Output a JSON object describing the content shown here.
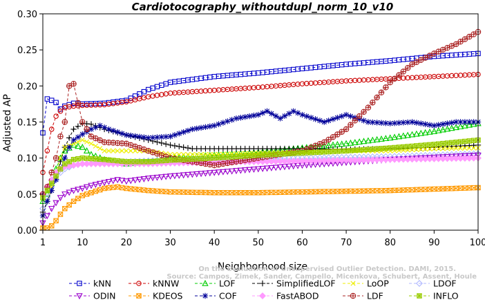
{
  "chart_data": {
    "type": "line",
    "title": "Cardiotocography_withoutdupl_norm_10_v10",
    "xlabel": "Neighborhood size",
    "ylabel": "Adjusted AP",
    "xlim": [
      1,
      100
    ],
    "ylim": [
      0,
      0.3
    ],
    "x_ticks": [
      1,
      10,
      20,
      30,
      40,
      50,
      60,
      70,
      80,
      90,
      100
    ],
    "y_ticks": [
      "0.00",
      "0.05",
      "0.10",
      "0.15",
      "0.20",
      "0.25",
      "0.30"
    ],
    "grid": false,
    "legend_position": "bottom",
    "watermark": [
      "Source: Campos, Zimek, Sander, Campello, Micenkova, Schubert, Assent, Houle",
      "On the Evaluation of Unsupervised Outlier Detection. DAMI, 2015."
    ],
    "series": [
      {
        "name": "kNN",
        "color": "#0000cc",
        "marker": "square",
        "dash": "4,3",
        "points": [
          [
            1,
            0.135
          ],
          [
            2,
            0.182
          ],
          [
            3,
            0.18
          ],
          [
            4,
            0.177
          ],
          [
            5,
            0.168
          ],
          [
            6,
            0.172
          ],
          [
            8,
            0.176
          ],
          [
            10,
            0.175
          ],
          [
            15,
            0.176
          ],
          [
            20,
            0.18
          ],
          [
            25,
            0.195
          ],
          [
            30,
            0.205
          ],
          [
            40,
            0.213
          ],
          [
            50,
            0.218
          ],
          [
            60,
            0.224
          ],
          [
            70,
            0.23
          ],
          [
            80,
            0.235
          ],
          [
            90,
            0.241
          ],
          [
            100,
            0.245
          ]
        ]
      },
      {
        "name": "kNNW",
        "color": "#cc0000",
        "marker": "circle",
        "dash": "4,3",
        "points": [
          [
            1,
            0.08
          ],
          [
            2,
            0.11
          ],
          [
            3,
            0.14
          ],
          [
            4,
            0.158
          ],
          [
            5,
            0.165
          ],
          [
            6,
            0.17
          ],
          [
            8,
            0.172
          ],
          [
            10,
            0.173
          ],
          [
            15,
            0.174
          ],
          [
            20,
            0.178
          ],
          [
            25,
            0.185
          ],
          [
            30,
            0.19
          ],
          [
            40,
            0.194
          ],
          [
            50,
            0.198
          ],
          [
            60,
            0.203
          ],
          [
            70,
            0.207
          ],
          [
            80,
            0.21
          ],
          [
            90,
            0.213
          ],
          [
            100,
            0.216
          ]
        ]
      },
      {
        "name": "LOF",
        "color": "#00cc00",
        "marker": "triangle-up",
        "dash": "4,3",
        "points": [
          [
            1,
            0.04
          ],
          [
            2,
            0.05
          ],
          [
            3,
            0.065
          ],
          [
            4,
            0.085
          ],
          [
            5,
            0.1
          ],
          [
            6,
            0.11
          ],
          [
            8,
            0.118
          ],
          [
            10,
            0.115
          ],
          [
            12,
            0.105
          ],
          [
            15,
            0.098
          ],
          [
            20,
            0.092
          ],
          [
            25,
            0.095
          ],
          [
            30,
            0.1
          ],
          [
            40,
            0.104
          ],
          [
            50,
            0.108
          ],
          [
            60,
            0.114
          ],
          [
            70,
            0.12
          ],
          [
            80,
            0.128
          ],
          [
            90,
            0.137
          ],
          [
            100,
            0.148
          ]
        ]
      },
      {
        "name": "SimplifiedLOF",
        "color": "#000000",
        "marker": "plus",
        "dash": "4,3",
        "points": [
          [
            1,
            0.025
          ],
          [
            2,
            0.04
          ],
          [
            3,
            0.055
          ],
          [
            4,
            0.075
          ],
          [
            5,
            0.095
          ],
          [
            6,
            0.115
          ],
          [
            7,
            0.128
          ],
          [
            8,
            0.14
          ],
          [
            10,
            0.148
          ],
          [
            12,
            0.147
          ],
          [
            15,
            0.14
          ],
          [
            20,
            0.132
          ],
          [
            25,
            0.125
          ],
          [
            30,
            0.118
          ],
          [
            35,
            0.113
          ],
          [
            40,
            0.113
          ],
          [
            50,
            0.113
          ],
          [
            60,
            0.113
          ],
          [
            70,
            0.112
          ],
          [
            80,
            0.113
          ],
          [
            90,
            0.115
          ],
          [
            100,
            0.118
          ]
        ]
      },
      {
        "name": "LoOP",
        "color": "#eeee00",
        "marker": "x",
        "dash": "4,3",
        "points": [
          [
            1,
            0.02
          ],
          [
            2,
            0.04
          ],
          [
            3,
            0.06
          ],
          [
            4,
            0.08
          ],
          [
            5,
            0.1
          ],
          [
            6,
            0.115
          ],
          [
            8,
            0.12
          ],
          [
            10,
            0.125
          ],
          [
            12,
            0.12
          ],
          [
            15,
            0.11
          ],
          [
            20,
            0.11
          ],
          [
            25,
            0.11
          ],
          [
            30,
            0.105
          ],
          [
            40,
            0.105
          ],
          [
            50,
            0.107
          ],
          [
            60,
            0.108
          ],
          [
            70,
            0.11
          ],
          [
            80,
            0.11
          ],
          [
            90,
            0.113
          ],
          [
            100,
            0.114
          ]
        ]
      },
      {
        "name": "LDOF",
        "color": "#b0b8ff",
        "marker": "diamond",
        "dash": "4,3",
        "points": [
          [
            1,
            0.03
          ],
          [
            2,
            0.045
          ],
          [
            3,
            0.06
          ],
          [
            4,
            0.07
          ],
          [
            5,
            0.08
          ],
          [
            6,
            0.085
          ],
          [
            8,
            0.09
          ],
          [
            10,
            0.092
          ],
          [
            15,
            0.093
          ],
          [
            20,
            0.095
          ],
          [
            25,
            0.096
          ],
          [
            30,
            0.097
          ],
          [
            40,
            0.098
          ],
          [
            50,
            0.099
          ],
          [
            60,
            0.1
          ],
          [
            70,
            0.101
          ],
          [
            80,
            0.102
          ],
          [
            90,
            0.104
          ],
          [
            100,
            0.106
          ]
        ]
      },
      {
        "name": "ODIN",
        "color": "#9900cc",
        "marker": "triangle-down",
        "dash": "4,3",
        "points": [
          [
            1,
            0.01
          ],
          [
            2,
            0.02
          ],
          [
            3,
            0.03
          ],
          [
            4,
            0.038
          ],
          [
            5,
            0.045
          ],
          [
            6,
            0.05
          ],
          [
            8,
            0.055
          ],
          [
            10,
            0.058
          ],
          [
            12,
            0.062
          ],
          [
            15,
            0.066
          ],
          [
            18,
            0.07
          ],
          [
            20,
            0.068
          ],
          [
            25,
            0.072
          ],
          [
            30,
            0.075
          ],
          [
            40,
            0.08
          ],
          [
            50,
            0.085
          ],
          [
            60,
            0.09
          ],
          [
            70,
            0.094
          ],
          [
            80,
            0.098
          ],
          [
            90,
            0.101
          ],
          [
            100,
            0.104
          ]
        ]
      },
      {
        "name": "KDEOS",
        "color": "#ff9900",
        "marker": "square-x",
        "dash": "4,3",
        "points": [
          [
            1,
            0.003
          ],
          [
            2,
            0.003
          ],
          [
            3,
            0.006
          ],
          [
            4,
            0.013
          ],
          [
            5,
            0.022
          ],
          [
            6,
            0.03
          ],
          [
            8,
            0.04
          ],
          [
            10,
            0.048
          ],
          [
            15,
            0.058
          ],
          [
            18,
            0.06
          ],
          [
            20,
            0.058
          ],
          [
            25,
            0.055
          ],
          [
            30,
            0.053
          ],
          [
            40,
            0.052
          ],
          [
            50,
            0.052
          ],
          [
            60,
            0.053
          ],
          [
            70,
            0.054
          ],
          [
            80,
            0.055
          ],
          [
            90,
            0.057
          ],
          [
            100,
            0.059
          ]
        ]
      },
      {
        "name": "COF",
        "color": "#000099",
        "marker": "asterisk",
        "dash": "4,3",
        "points": [
          [
            1,
            0.02
          ],
          [
            2,
            0.04
          ],
          [
            3,
            0.055
          ],
          [
            4,
            0.07
          ],
          [
            5,
            0.085
          ],
          [
            6,
            0.1
          ],
          [
            7,
            0.115
          ],
          [
            8,
            0.125
          ],
          [
            10,
            0.133
          ],
          [
            12,
            0.14
          ],
          [
            14,
            0.145
          ],
          [
            16,
            0.14
          ],
          [
            20,
            0.132
          ],
          [
            25,
            0.128
          ],
          [
            30,
            0.13
          ],
          [
            35,
            0.14
          ],
          [
            40,
            0.145
          ],
          [
            45,
            0.155
          ],
          [
            50,
            0.16
          ],
          [
            52,
            0.165
          ],
          [
            55,
            0.155
          ],
          [
            58,
            0.165
          ],
          [
            60,
            0.16
          ],
          [
            65,
            0.15
          ],
          [
            70,
            0.16
          ],
          [
            75,
            0.15
          ],
          [
            80,
            0.148
          ],
          [
            85,
            0.15
          ],
          [
            90,
            0.145
          ],
          [
            95,
            0.15
          ],
          [
            100,
            0.15
          ]
        ]
      },
      {
        "name": "FastABOD",
        "color": "#ff99ff",
        "marker": "diamond-filled",
        "dash": "4,3",
        "points": [
          [
            1,
            0.05
          ],
          [
            2,
            0.06
          ],
          [
            3,
            0.07
          ],
          [
            4,
            0.08
          ],
          [
            5,
            0.085
          ],
          [
            6,
            0.088
          ],
          [
            8,
            0.09
          ],
          [
            10,
            0.092
          ],
          [
            15,
            0.092
          ],
          [
            20,
            0.092
          ],
          [
            25,
            0.092
          ],
          [
            30,
            0.093
          ],
          [
            40,
            0.094
          ],
          [
            50,
            0.095
          ],
          [
            60,
            0.096
          ],
          [
            70,
            0.097
          ],
          [
            80,
            0.098
          ],
          [
            90,
            0.099
          ],
          [
            100,
            0.1
          ]
        ]
      },
      {
        "name": "LDF",
        "color": "#aa2222",
        "marker": "circle-plus",
        "dash": "4,3",
        "points": [
          [
            1,
            0.05
          ],
          [
            2,
            0.06
          ],
          [
            3,
            0.08
          ],
          [
            4,
            0.1
          ],
          [
            5,
            0.13
          ],
          [
            6,
            0.15
          ],
          [
            7,
            0.2
          ],
          [
            8,
            0.203
          ],
          [
            10,
            0.15
          ],
          [
            12,
            0.13
          ],
          [
            15,
            0.122
          ],
          [
            20,
            0.12
          ],
          [
            25,
            0.11
          ],
          [
            30,
            0.1
          ],
          [
            35,
            0.095
          ],
          [
            40,
            0.09
          ],
          [
            45,
            0.095
          ],
          [
            50,
            0.1
          ],
          [
            55,
            0.105
          ],
          [
            60,
            0.11
          ],
          [
            65,
            0.122
          ],
          [
            70,
            0.14
          ],
          [
            75,
            0.17
          ],
          [
            80,
            0.205
          ],
          [
            85,
            0.23
          ],
          [
            90,
            0.245
          ],
          [
            95,
            0.258
          ],
          [
            100,
            0.275
          ]
        ]
      },
      {
        "name": "INFLO",
        "color": "#99cc00",
        "marker": "square-star",
        "dash": "4,3",
        "points": [
          [
            1,
            0.045
          ],
          [
            2,
            0.055
          ],
          [
            3,
            0.065
          ],
          [
            4,
            0.075
          ],
          [
            5,
            0.085
          ],
          [
            6,
            0.092
          ],
          [
            8,
            0.098
          ],
          [
            10,
            0.1
          ],
          [
            15,
            0.098
          ],
          [
            20,
            0.095
          ],
          [
            25,
            0.095
          ],
          [
            30,
            0.097
          ],
          [
            40,
            0.1
          ],
          [
            50,
            0.104
          ],
          [
            60,
            0.107
          ],
          [
            70,
            0.11
          ],
          [
            80,
            0.114
          ],
          [
            90,
            0.119
          ],
          [
            100,
            0.125
          ]
        ]
      }
    ]
  }
}
